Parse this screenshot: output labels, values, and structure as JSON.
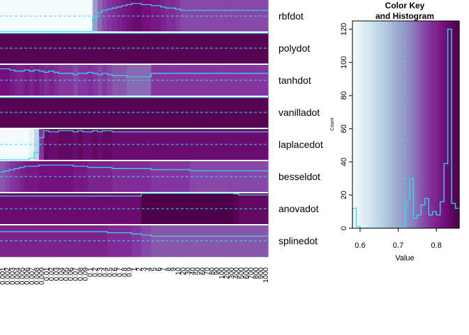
{
  "chart_data": [
    {
      "type": "heatmap",
      "rows": [
        "rbfdot",
        "polydot",
        "tanhdot",
        "vanilladot",
        "laplacedot",
        "besseldot",
        "anovadot",
        "splinedot"
      ],
      "columns": [
        "0.001",
        "0.002",
        "0.003",
        "0.004",
        "0.005",
        "0.006",
        "0.007",
        "0.008",
        "0.009",
        "0.01",
        "0.02",
        "0.03",
        "0.04",
        "0.05",
        "0.06",
        "0.07",
        "0.08",
        "0.09",
        "0.1",
        "0.2",
        "0.3",
        "0.4",
        "0.5",
        "0.6",
        "0.7",
        "0.8",
        "0.9",
        "1",
        "2",
        "3",
        "4",
        "5",
        "6",
        "7",
        "8",
        "9",
        "10",
        "20",
        "30",
        "40",
        "50",
        "60",
        "70",
        "80",
        "90",
        "100",
        "200",
        "300",
        "400",
        "500",
        "600",
        "700",
        "800",
        "900",
        "1000"
      ],
      "values": [
        [
          0.5,
          0.5,
          0.5,
          0.5,
          0.5,
          0.5,
          0.5,
          0.5,
          0.5,
          0.5,
          0.5,
          0.5,
          0.5,
          0.5,
          0.5,
          0.5,
          0.5,
          0.5,
          0.55,
          0.71,
          0.75,
          0.77,
          0.78,
          0.79,
          0.8,
          0.81,
          0.82,
          0.83,
          0.83,
          0.82,
          0.82,
          0.81,
          0.81,
          0.8,
          0.79,
          0.79,
          0.78,
          0.77,
          0.77,
          0.77,
          0.77,
          0.77,
          0.77,
          0.77,
          0.77,
          0.77,
          0.77,
          0.77,
          0.77,
          0.77,
          0.77,
          0.77,
          0.77,
          0.77,
          0.77
        ],
        [
          0.85,
          0.85,
          0.85,
          0.85,
          0.85,
          0.85,
          0.85,
          0.85,
          0.85,
          0.85,
          0.85,
          0.85,
          0.85,
          0.85,
          0.85,
          0.85,
          0.85,
          0.85,
          0.85,
          0.85,
          0.85,
          0.85,
          0.85,
          0.85,
          0.85,
          0.85,
          0.85,
          0.85,
          0.85,
          0.85,
          0.85,
          0.85,
          0.85,
          0.85,
          0.85,
          0.85,
          0.85,
          0.85,
          0.85,
          0.85,
          0.85,
          0.85,
          0.85,
          0.85,
          0.85,
          0.85,
          0.85,
          0.85,
          0.85,
          0.85,
          0.85,
          0.85,
          0.85,
          0.85,
          0.85
        ],
        [
          0.82,
          0.82,
          0.81,
          0.8,
          0.8,
          0.81,
          0.8,
          0.81,
          0.8,
          0.79,
          0.8,
          0.79,
          0.78,
          0.78,
          0.78,
          0.77,
          0.78,
          0.78,
          0.79,
          0.78,
          0.77,
          0.78,
          0.77,
          0.76,
          0.76,
          0.76,
          0.75,
          0.75,
          0.75,
          0.75,
          0.75,
          0.78,
          0.78,
          0.78,
          0.78,
          0.78,
          0.78,
          0.78,
          0.78,
          0.78,
          0.78,
          0.78,
          0.78,
          0.78,
          0.78,
          0.78,
          0.78,
          0.78,
          0.78,
          0.78,
          0.78,
          0.78,
          0.78,
          0.78,
          0.78
        ],
        [
          0.85,
          0.85,
          0.85,
          0.85,
          0.85,
          0.85,
          0.85,
          0.85,
          0.85,
          0.85,
          0.85,
          0.85,
          0.85,
          0.85,
          0.85,
          0.85,
          0.85,
          0.85,
          0.85,
          0.85,
          0.85,
          0.85,
          0.85,
          0.85,
          0.85,
          0.85,
          0.85,
          0.85,
          0.85,
          0.85,
          0.85,
          0.85,
          0.85,
          0.85,
          0.85,
          0.85,
          0.85,
          0.85,
          0.85,
          0.85,
          0.85,
          0.85,
          0.85,
          0.85,
          0.85,
          0.85,
          0.85,
          0.85,
          0.85,
          0.85,
          0.85,
          0.85,
          0.85,
          0.85,
          0.85
        ],
        [
          0.5,
          0.5,
          0.5,
          0.5,
          0.5,
          0.52,
          0.6,
          0.65,
          0.78,
          0.84,
          0.83,
          0.83,
          0.84,
          0.84,
          0.84,
          0.83,
          0.84,
          0.83,
          0.83,
          0.84,
          0.83,
          0.84,
          0.84,
          0.83,
          0.83,
          0.83,
          0.83,
          0.83,
          0.83,
          0.83,
          0.83,
          0.83,
          0.83,
          0.83,
          0.83,
          0.83,
          0.83,
          0.83,
          0.83,
          0.83,
          0.83,
          0.83,
          0.83,
          0.83,
          0.83,
          0.83,
          0.83,
          0.83,
          0.83,
          0.83,
          0.83,
          0.83,
          0.83,
          0.83,
          0.83
        ],
        [
          0.76,
          0.77,
          0.78,
          0.79,
          0.8,
          0.81,
          0.81,
          0.81,
          0.82,
          0.82,
          0.82,
          0.82,
          0.82,
          0.82,
          0.82,
          0.81,
          0.81,
          0.81,
          0.8,
          0.8,
          0.8,
          0.8,
          0.8,
          0.79,
          0.79,
          0.79,
          0.79,
          0.79,
          0.79,
          0.79,
          0.79,
          0.78,
          0.78,
          0.78,
          0.78,
          0.78,
          0.78,
          0.78,
          0.78,
          0.77,
          0.77,
          0.77,
          0.77,
          0.77,
          0.77,
          0.77,
          0.77,
          0.77,
          0.77,
          0.77,
          0.77,
          0.77,
          0.77,
          0.77,
          0.77
        ],
        [
          0.83,
          0.83,
          0.83,
          0.83,
          0.83,
          0.83,
          0.83,
          0.83,
          0.83,
          0.83,
          0.83,
          0.83,
          0.83,
          0.83,
          0.83,
          0.83,
          0.83,
          0.83,
          0.83,
          0.83,
          0.83,
          0.83,
          0.83,
          0.83,
          0.83,
          0.83,
          0.83,
          0.83,
          0.83,
          0.86,
          0.86,
          0.86,
          0.86,
          0.86,
          0.86,
          0.86,
          0.86,
          0.86,
          0.86,
          0.86,
          0.86,
          0.86,
          0.86,
          0.86,
          0.86,
          0.86,
          0.86,
          0.86,
          0.85,
          0.84,
          0.84,
          0.84,
          0.84,
          0.84,
          0.84
        ],
        [
          0.8,
          0.8,
          0.8,
          0.8,
          0.8,
          0.8,
          0.8,
          0.8,
          0.8,
          0.8,
          0.8,
          0.8,
          0.8,
          0.8,
          0.8,
          0.8,
          0.8,
          0.8,
          0.8,
          0.8,
          0.8,
          0.8,
          0.79,
          0.79,
          0.79,
          0.79,
          0.79,
          0.78,
          0.78,
          0.77,
          0.77,
          0.76,
          0.76,
          0.76,
          0.76,
          0.76,
          0.76,
          0.76,
          0.76,
          0.76,
          0.76,
          0.76,
          0.76,
          0.76,
          0.76,
          0.76,
          0.76,
          0.76,
          0.76,
          0.76,
          0.76,
          0.76,
          0.76,
          0.76,
          0.76
        ]
      ],
      "trace_color": "#33ddf0",
      "palette": [
        "#f5fbfd",
        "#d7e7f0",
        "#b6cfe1",
        "#9ea8d0",
        "#8b7cbc",
        "#84359f",
        "#740f7c",
        "#4d0048"
      ]
    },
    {
      "type": "histogram",
      "title": "Color Key",
      "subtitle": "and Histogram",
      "xlabel": "Value",
      "ylabel": "Count",
      "xlim": [
        0.58,
        0.86
      ],
      "ylim": [
        0,
        125
      ],
      "x_ticks": [
        0.6,
        0.7,
        0.8
      ],
      "x_tick_labels": [
        "0.6",
        "0.7",
        "0.8"
      ],
      "y_ticks": [
        0,
        20,
        40,
        60,
        80,
        100,
        120
      ],
      "y_tick_labels": [
        "0",
        "20",
        "40",
        "60",
        "80",
        "100",
        "120"
      ],
      "bins": [
        0.58,
        0.59,
        0.6,
        0.61,
        0.62,
        0.63,
        0.64,
        0.65,
        0.66,
        0.67,
        0.68,
        0.69,
        0.7,
        0.71,
        0.72,
        0.73,
        0.74,
        0.75,
        0.76,
        0.77,
        0.78,
        0.79,
        0.8,
        0.81,
        0.82,
        0.83,
        0.84,
        0.85,
        0.86
      ],
      "counts": [
        12,
        1,
        0,
        0,
        0,
        0,
        0,
        0,
        0,
        0,
        0,
        0,
        0,
        1,
        17,
        30,
        6,
        8,
        14,
        18,
        8,
        10,
        8,
        16,
        39,
        120,
        15,
        12
      ],
      "key_line": 0.717
    }
  ]
}
